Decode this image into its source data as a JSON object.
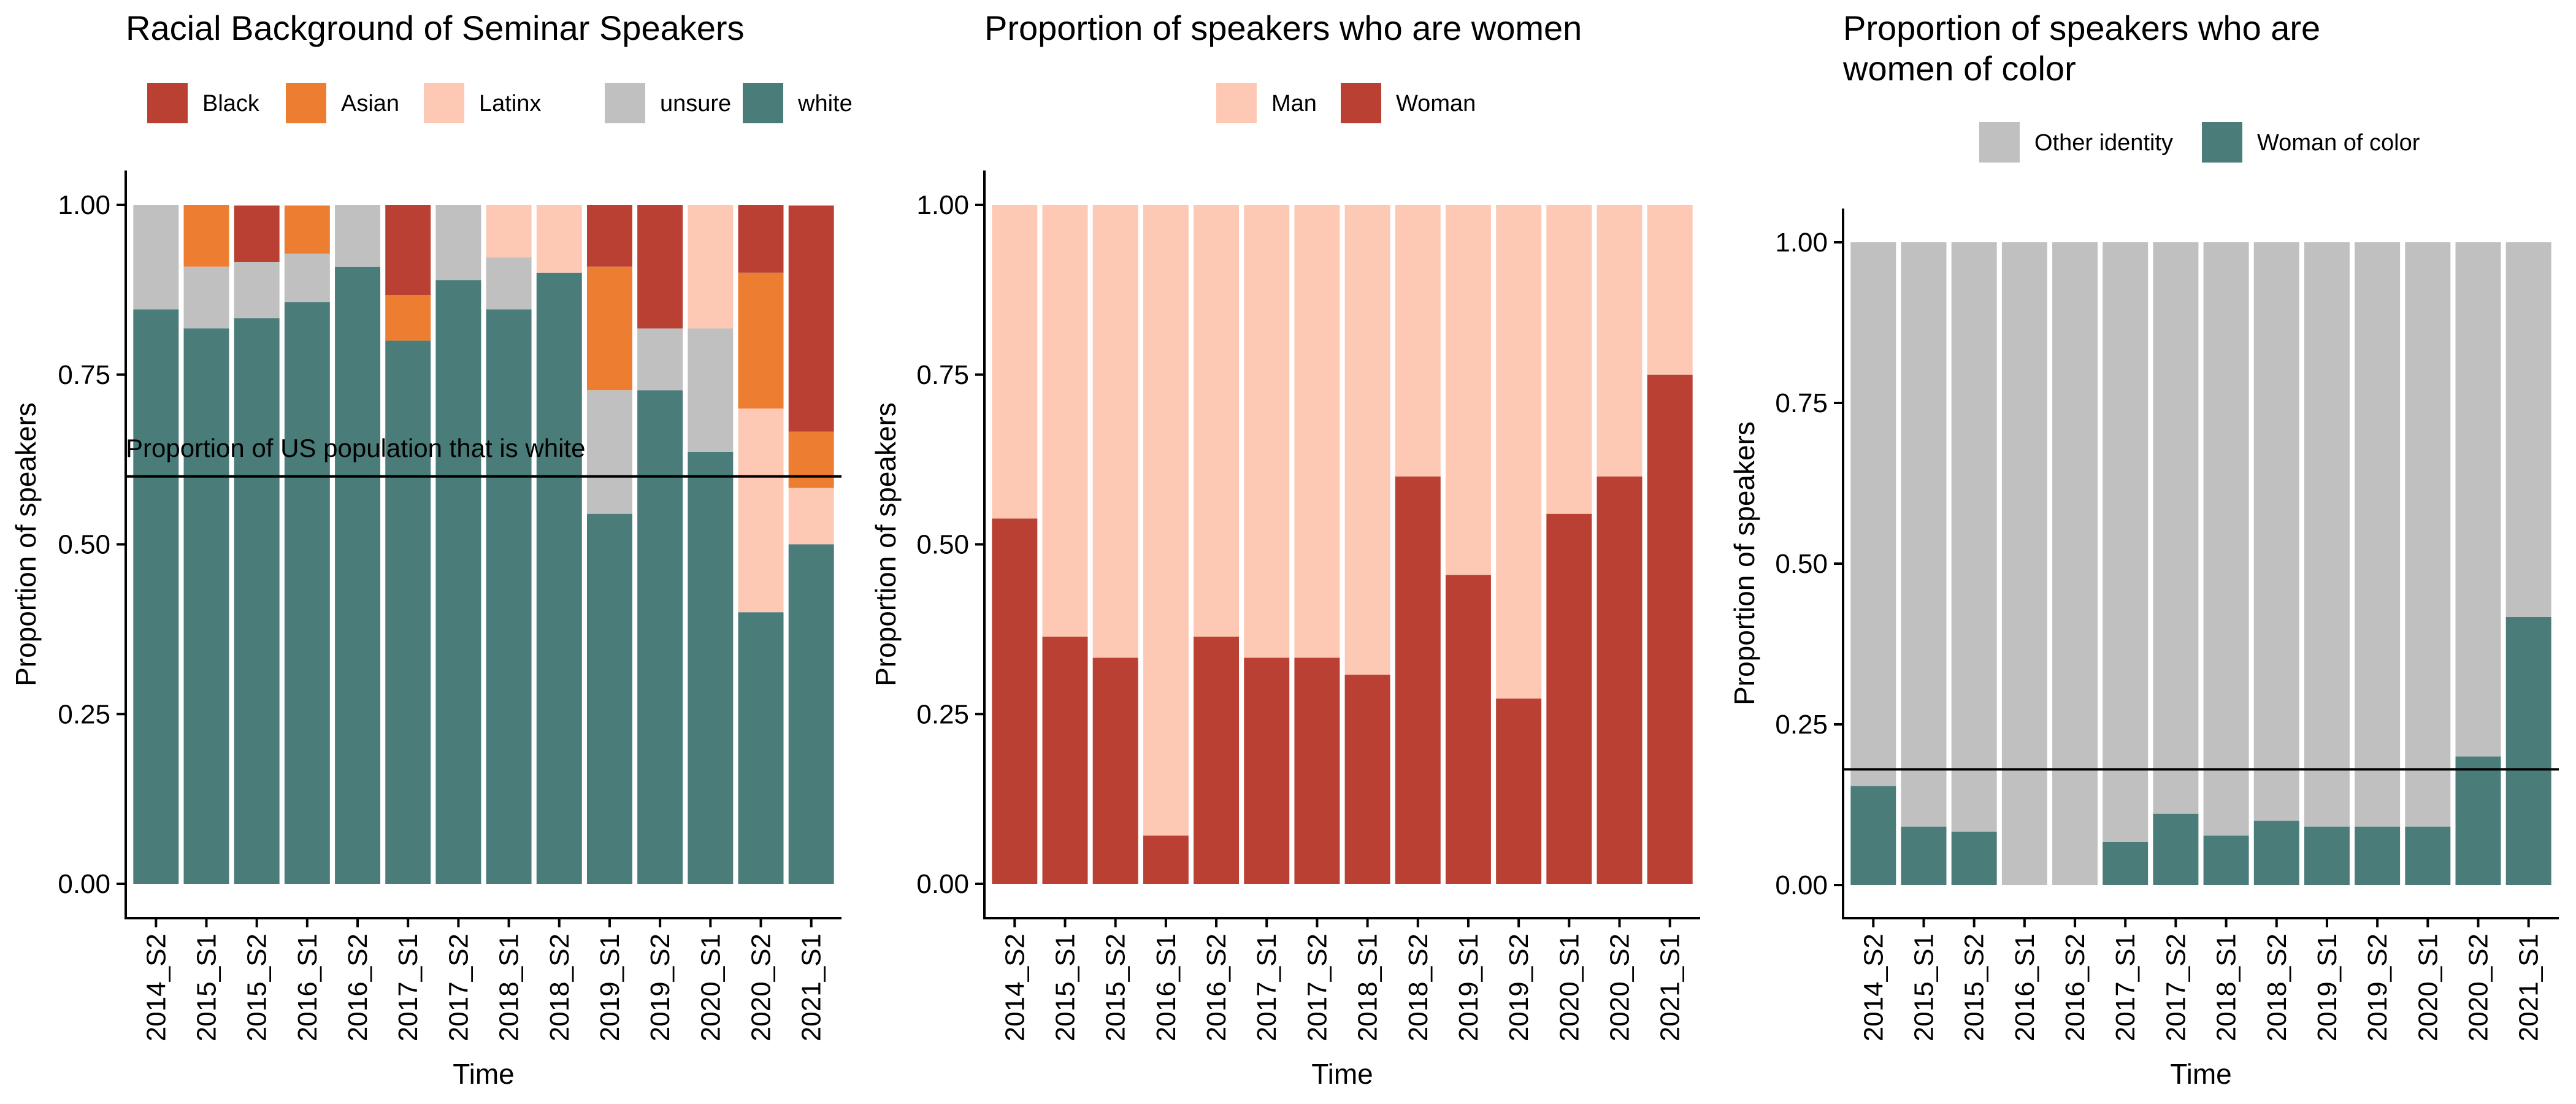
{
  "chart_data": [
    {
      "type": "bar",
      "stacked": true,
      "title": "Racial Background of Seminar Speakers",
      "xlabel": "Time",
      "ylabel": "Proportion of speakers",
      "ylim": [
        0,
        1
      ],
      "yticks": [
        "0.00",
        "0.25",
        "0.50",
        "0.75",
        "1.00"
      ],
      "legend_position": "top",
      "categories": [
        "2014_S2",
        "2015_S1",
        "2015_S2",
        "2016_S1",
        "2016_S2",
        "2017_S1",
        "2017_S2",
        "2018_S1",
        "2018_S2",
        "2019_S1",
        "2019_S2",
        "2020_S1",
        "2020_S2",
        "2021_S1"
      ],
      "series": [
        {
          "name": "white",
          "color": "#4a7c7a",
          "values": [
            0.846,
            0.818,
            0.833,
            0.857,
            0.909,
            0.8,
            0.889,
            0.846,
            0.9,
            0.545,
            0.727,
            0.636,
            0.4,
            0.5
          ]
        },
        {
          "name": "unsure",
          "color": "#c0c0c0",
          "values": [
            0.154,
            0.091,
            0.083,
            0.071,
            0.091,
            0.0,
            0.111,
            0.077,
            0.0,
            0.182,
            0.091,
            0.182,
            0.0,
            0.0
          ]
        },
        {
          "name": "Latinx",
          "color": "#fdc9b4",
          "values": [
            0.0,
            0.0,
            0.0,
            0.0,
            0.0,
            0.0,
            0.0,
            0.077,
            0.1,
            0.0,
            0.0,
            0.182,
            0.3,
            0.083
          ]
        },
        {
          "name": "Asian",
          "color": "#ed7d31",
          "values": [
            0.0,
            0.091,
            0.0,
            0.071,
            0.0,
            0.067,
            0.0,
            0.0,
            0.0,
            0.182,
            0.0,
            0.0,
            0.2,
            0.083
          ]
        },
        {
          "name": "Black",
          "color": "#b94032",
          "values": [
            0.0,
            0.0,
            0.083,
            0.0,
            0.0,
            0.133,
            0.0,
            0.0,
            0.0,
            0.091,
            0.182,
            0.0,
            0.1,
            0.333
          ]
        }
      ],
      "legend_order": [
        "Black",
        "Asian",
        "Latinx",
        "unsure",
        "white"
      ],
      "reference_line": {
        "y": 0.6,
        "label": "Proportion of US population that is white"
      }
    },
    {
      "type": "bar",
      "stacked": true,
      "title": "Proportion of speakers who are women",
      "xlabel": "Time",
      "ylabel": "Proportion of speakers",
      "ylim": [
        0,
        1
      ],
      "yticks": [
        "0.00",
        "0.25",
        "0.50",
        "0.75",
        "1.00"
      ],
      "legend_position": "top",
      "categories": [
        "2014_S2",
        "2015_S1",
        "2015_S2",
        "2016_S1",
        "2016_S2",
        "2017_S1",
        "2017_S2",
        "2018_S1",
        "2018_S2",
        "2019_S1",
        "2019_S2",
        "2020_S1",
        "2020_S2",
        "2021_S1"
      ],
      "series": [
        {
          "name": "Woman",
          "color": "#b94032",
          "values": [
            0.538,
            0.364,
            0.333,
            0.071,
            0.364,
            0.333,
            0.333,
            0.308,
            0.6,
            0.455,
            0.273,
            0.545,
            0.6,
            0.75
          ]
        },
        {
          "name": "Man",
          "color": "#fdc9b4",
          "values": [
            0.462,
            0.636,
            0.667,
            0.929,
            0.636,
            0.667,
            0.667,
            0.692,
            0.4,
            0.545,
            0.727,
            0.455,
            0.4,
            0.25
          ]
        }
      ],
      "legend_order": [
        "Man",
        "Woman"
      ]
    },
    {
      "type": "bar",
      "stacked": true,
      "title": "Proportion of speakers who are\nwomen of color",
      "xlabel": "Time",
      "ylabel": "Proportion of speakers",
      "ylim": [
        0,
        1
      ],
      "yticks": [
        "0.00",
        "0.25",
        "0.50",
        "0.75",
        "1.00"
      ],
      "legend_position": "top",
      "categories": [
        "2014_S2",
        "2015_S1",
        "2015_S2",
        "2016_S1",
        "2016_S2",
        "2017_S1",
        "2017_S2",
        "2018_S1",
        "2018_S2",
        "2019_S1",
        "2019_S2",
        "2020_S1",
        "2020_S2",
        "2021_S1"
      ],
      "series": [
        {
          "name": "Woman of color",
          "color": "#4a7c7a",
          "values": [
            0.154,
            0.091,
            0.083,
            0.0,
            0.0,
            0.067,
            0.111,
            0.077,
            0.1,
            0.091,
            0.091,
            0.091,
            0.2,
            0.417
          ]
        },
        {
          "name": "Other identity",
          "color": "#c0c0c0",
          "values": [
            0.846,
            0.909,
            0.917,
            1.0,
            1.0,
            0.933,
            0.889,
            0.923,
            0.9,
            0.909,
            0.909,
            0.909,
            0.8,
            0.583
          ]
        }
      ],
      "legend_order": [
        "Other identity",
        "Woman of color"
      ],
      "reference_line": {
        "y": 0.18,
        "label": ""
      }
    }
  ]
}
